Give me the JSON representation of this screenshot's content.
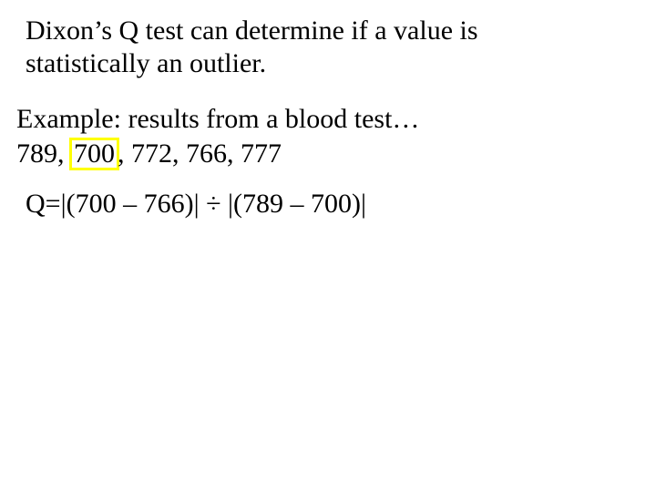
{
  "intro": {
    "line1": "Dixon’s Q test can determine if a value is",
    "line2": "statistically an outlier."
  },
  "example": {
    "label": "Example:  results from a blood test…",
    "data_prefix": "789, ",
    "data_highlighted": "700",
    "data_suffix": ", 772, 766, 777"
  },
  "formula": {
    "text": "Q=|(700 – 766)| ÷ |(789 – 700)|"
  },
  "styling": {
    "background_color": "#ffffff",
    "text_color": "#000000",
    "highlight_border_color": "#ffff00",
    "font_family": "Times New Roman",
    "base_fontsize": 30
  }
}
